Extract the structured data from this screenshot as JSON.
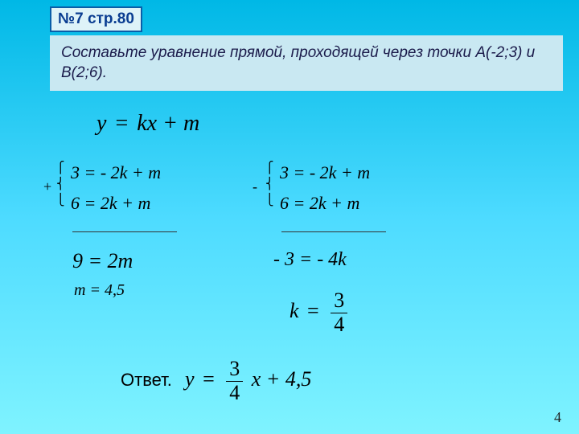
{
  "title": "№7 стр.80",
  "task": "Составьте уравнение прямой, проходящей через точки А(-2;3) и В(2;6).",
  "general_formula": {
    "lhs": "y",
    "rhs": "kx + m"
  },
  "system_left": {
    "sign": "+",
    "eq1": "3 = - 2k + m",
    "eq2": "6 = 2k + m"
  },
  "system_right": {
    "sign": "-",
    "eq1": "3 = - 2k + m",
    "eq2": "6 = 2k + m"
  },
  "left_results": {
    "line1": "9 = 2m",
    "line2": "m = 4,5"
  },
  "right_results": {
    "line1": "- 3 = - 4k",
    "k_label": "k",
    "frac_num": "3",
    "frac_den": "4"
  },
  "answer": {
    "label": "Ответ.",
    "lhs": "y",
    "frac_num": "3",
    "frac_den": "4",
    "tail": "x + 4,5"
  },
  "page_number": "4",
  "colors": {
    "title_border": "#0a5ea8",
    "title_bg": "#def3f8",
    "task_bg": "#c9e8f2"
  }
}
